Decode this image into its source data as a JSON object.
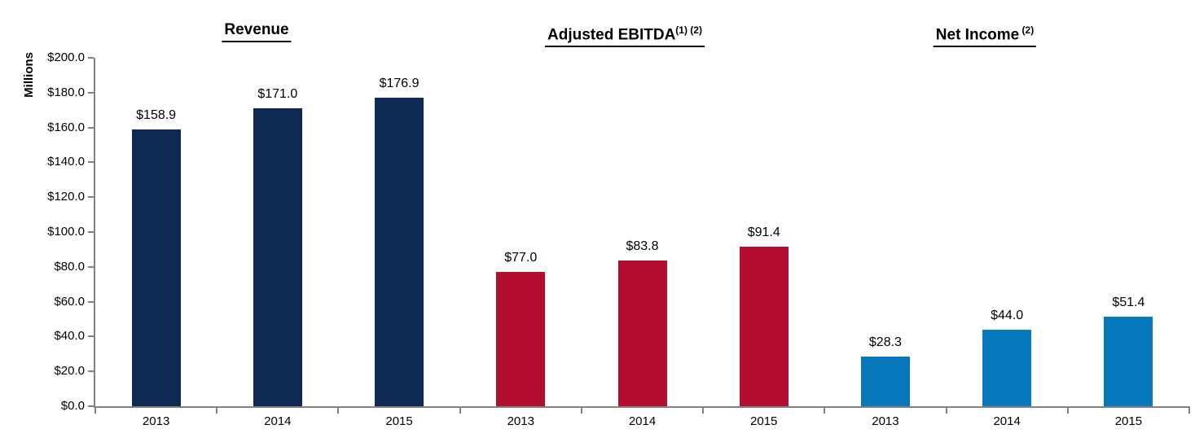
{
  "chart_data": {
    "type": "bar",
    "ylabel": "Millions",
    "ylim": [
      0,
      200
    ],
    "ytick_step": 20,
    "ytick_labels": [
      "$0.0",
      "$20.0",
      "$40.0",
      "$60.0",
      "$80.0",
      "$100.0",
      "$120.0",
      "$140.0",
      "$160.0",
      "$180.0",
      "$200.0"
    ],
    "grid": false,
    "legend": "none",
    "axis_color": "#828282",
    "groups": [
      {
        "title": "Revenue",
        "title_sup": "",
        "color": "#0e2a52",
        "categories": [
          "2013",
          "2014",
          "2015"
        ],
        "values": [
          158.9,
          171.0,
          176.9
        ],
        "value_labels": [
          "$158.9",
          "$171.0",
          "$176.9"
        ]
      },
      {
        "title": "Adjusted EBITDA",
        "title_sup": "(1) (2)",
        "color": "#b30d2f",
        "categories": [
          "2013",
          "2014",
          "2015"
        ],
        "values": [
          77.0,
          83.8,
          91.4
        ],
        "value_labels": [
          "$77.0",
          "$83.8",
          "$91.4"
        ]
      },
      {
        "title": "Net Income",
        "title_sup": " (2)",
        "color": "#0878bd",
        "categories": [
          "2013",
          "2014",
          "2015"
        ],
        "values": [
          28.3,
          44.0,
          51.4
        ],
        "value_labels": [
          "$28.3",
          "$44.0",
          "$51.4"
        ]
      }
    ]
  }
}
